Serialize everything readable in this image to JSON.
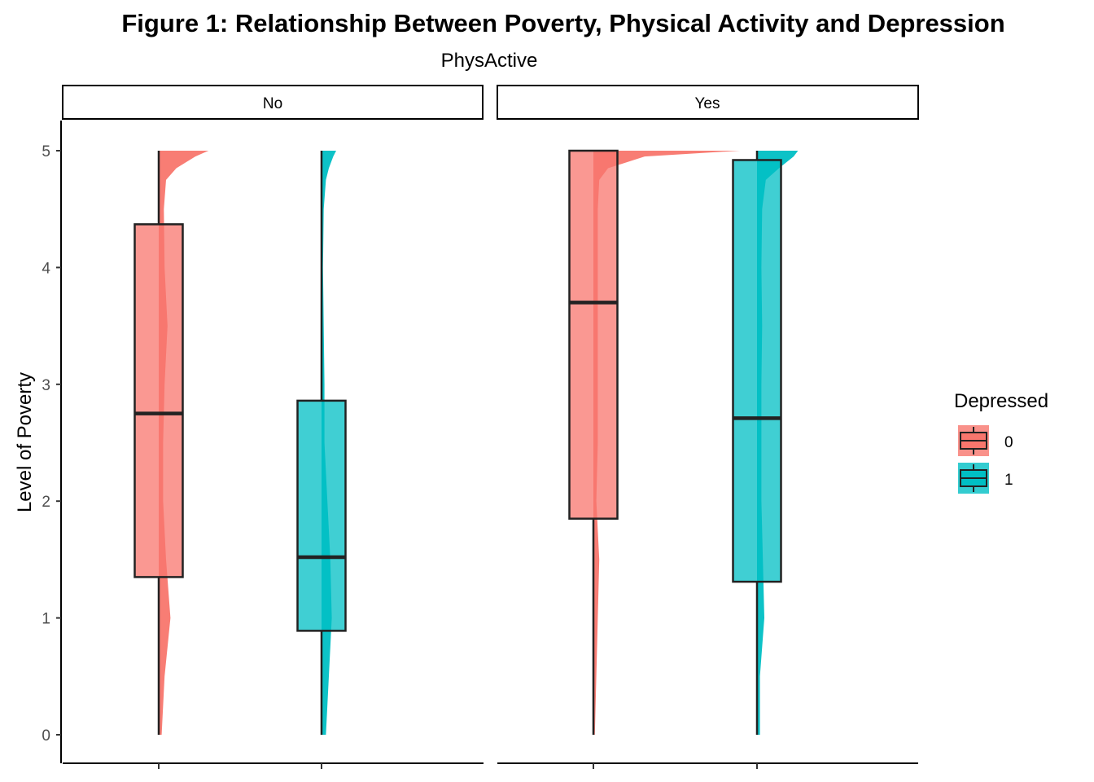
{
  "chart_data": {
    "type": "boxplot+half-violin",
    "title": "Figure 1: Relationship Between Poverty, Physical Activity and Depression",
    "facet_label": "PhysActive",
    "facets": [
      "No",
      "Yes"
    ],
    "ylabel": "Level of Poverty",
    "xlabel": "",
    "ylim": [
      0,
      5
    ],
    "yticks": [
      0,
      1,
      2,
      3,
      4,
      5
    ],
    "legend": {
      "title": "Depressed",
      "position": "right",
      "entries": [
        {
          "label": "0",
          "color": "#F8766D"
        },
        {
          "label": "1",
          "color": "#00BFC4"
        }
      ]
    },
    "density_y": [
      0,
      0.5,
      1,
      1.5,
      2,
      2.5,
      3,
      3.5,
      4,
      4.5,
      4.75,
      4.85,
      4.95,
      5
    ],
    "groups": [
      {
        "facet": "No",
        "depressed": "0",
        "color": "#F8766D",
        "min": 0,
        "q1": 1.35,
        "median": 2.75,
        "q3": 4.37,
        "max": 5,
        "density": [
          0.02,
          0.04,
          0.08,
          0.05,
          0.03,
          0.03,
          0.04,
          0.06,
          0.04,
          0.035,
          0.05,
          0.12,
          0.25,
          0.34
        ]
      },
      {
        "facet": "No",
        "depressed": "1",
        "color": "#00BFC4",
        "min": 0,
        "q1": 0.89,
        "median": 1.52,
        "q3": 2.86,
        "max": 5,
        "density": [
          0.03,
          0.05,
          0.07,
          0.06,
          0.04,
          0.02,
          0.02,
          0.015,
          0.01,
          0.015,
          0.03,
          0.05,
          0.08,
          0.1
        ]
      },
      {
        "facet": "Yes",
        "depressed": "0",
        "color": "#F8766D",
        "min": 0,
        "q1": 1.85,
        "median": 3.7,
        "q3": 5,
        "max": 5,
        "density": [
          0.01,
          0.02,
          0.03,
          0.04,
          0.02,
          0.03,
          0.03,
          0.03,
          0.03,
          0.03,
          0.04,
          0.1,
          0.35,
          1.0
        ]
      },
      {
        "facet": "Yes",
        "depressed": "1",
        "color": "#00BFC4",
        "min": 0,
        "q1": 1.31,
        "median": 2.71,
        "q3": 4.92,
        "max": 5,
        "density": [
          0.02,
          0.02,
          0.05,
          0.04,
          0.03,
          0.03,
          0.03,
          0.035,
          0.03,
          0.035,
          0.06,
          0.15,
          0.25,
          0.28
        ]
      }
    ]
  }
}
